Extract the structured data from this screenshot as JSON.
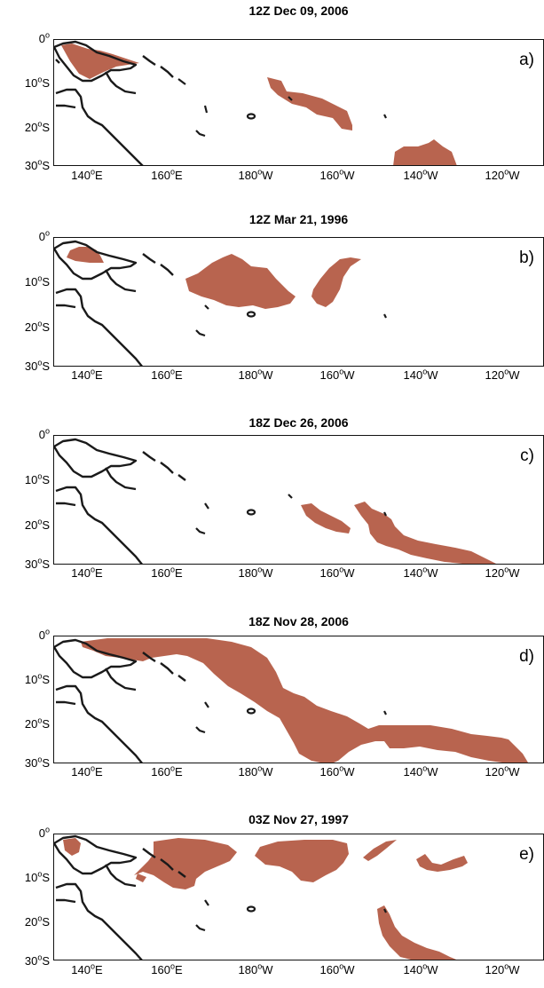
{
  "colors": {
    "shade": "#b8644f",
    "coast": "#1a1a1a"
  },
  "axis": {
    "y_ticks": [
      {
        "deg": "0",
        "sym": "o",
        "hemi": ""
      },
      {
        "deg": "10",
        "sym": "o",
        "hemi": "S"
      },
      {
        "deg": "20",
        "sym": "o",
        "hemi": "S"
      },
      {
        "deg": "30",
        "sym": "o",
        "hemi": "S"
      }
    ],
    "x_ticks": [
      {
        "deg": "140",
        "sym": "o",
        "hemi": "E"
      },
      {
        "deg": "160",
        "sym": "o",
        "hemi": "E"
      },
      {
        "deg": "180",
        "sym": "o",
        "hemi": "W"
      },
      {
        "deg": "160",
        "sym": "o",
        "hemi": "W"
      },
      {
        "deg": "140",
        "sym": "o",
        "hemi": "W"
      },
      {
        "deg": "120",
        "sym": "o",
        "hemi": "W"
      }
    ]
  },
  "panels": [
    {
      "title": "12Z Dec 09, 2006",
      "label": "a)"
    },
    {
      "title": "12Z Mar 21, 1996",
      "label": "b)"
    },
    {
      "title": "18Z Dec 26, 2006",
      "label": "c)"
    },
    {
      "title": "18Z Nov 28, 2006",
      "label": "d)"
    },
    {
      "title": "03Z Nov 27, 1997",
      "label": "e)"
    }
  ]
}
